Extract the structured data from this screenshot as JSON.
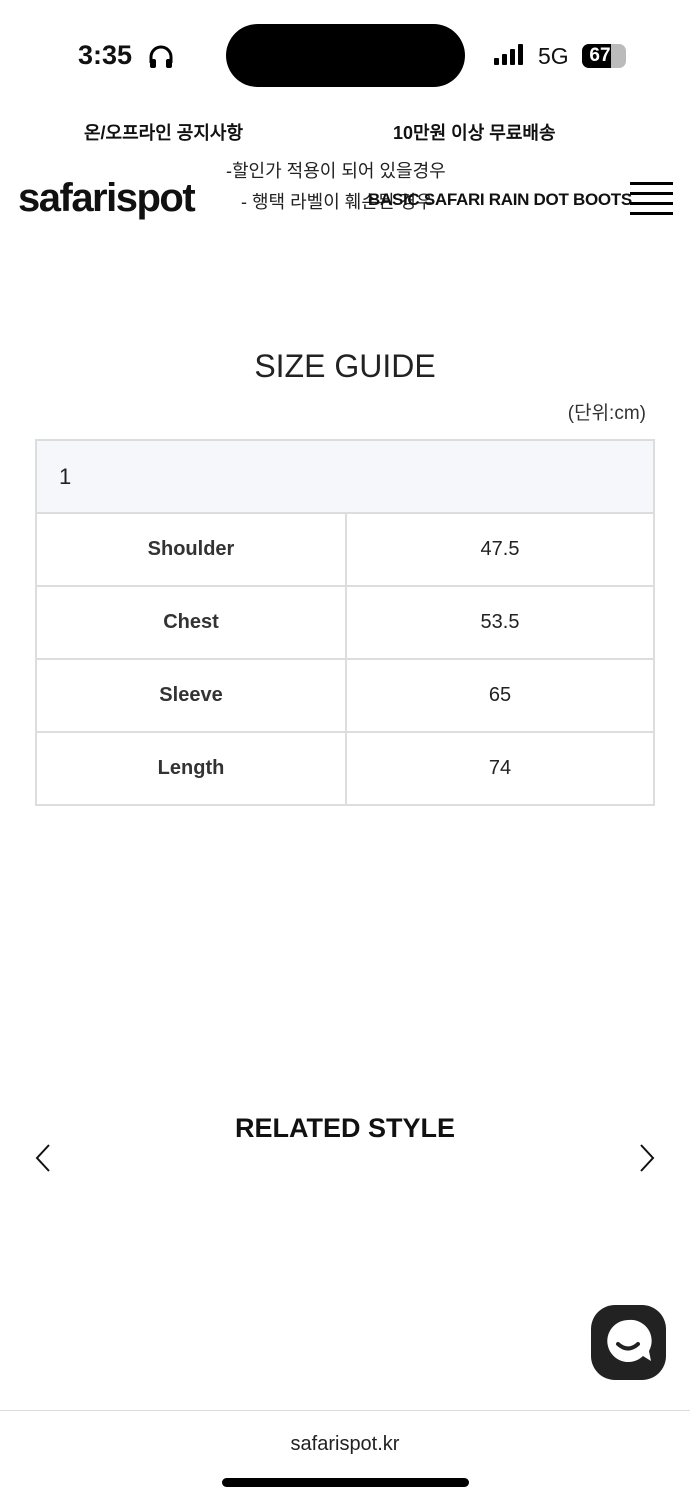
{
  "status_bar": {
    "time": "3:35",
    "network": "5G",
    "battery": "67",
    "battery_level": 67
  },
  "notices": {
    "left": "온/오프라인 공지사항",
    "right": "10만원 이상 무료배송",
    "line1": "-할인가 적용이 되어 있을경우",
    "line2": "- 행택 라벨이 훼손된 경우"
  },
  "header": {
    "logo": "safarispot",
    "product": "BASIC SAFARI RAIN DOT BOOTS"
  },
  "size_guide": {
    "title": "SIZE GUIDE",
    "unit": "(단위:cm)",
    "size": "1",
    "rows": [
      {
        "label": "Shoulder",
        "value": "47.5"
      },
      {
        "label": "Chest",
        "value": "53.5"
      },
      {
        "label": "Sleeve",
        "value": "65"
      },
      {
        "label": "Length",
        "value": "74"
      }
    ]
  },
  "related": {
    "title": "RELATED STYLE"
  },
  "footer": {
    "url": "safarispot.kr"
  }
}
